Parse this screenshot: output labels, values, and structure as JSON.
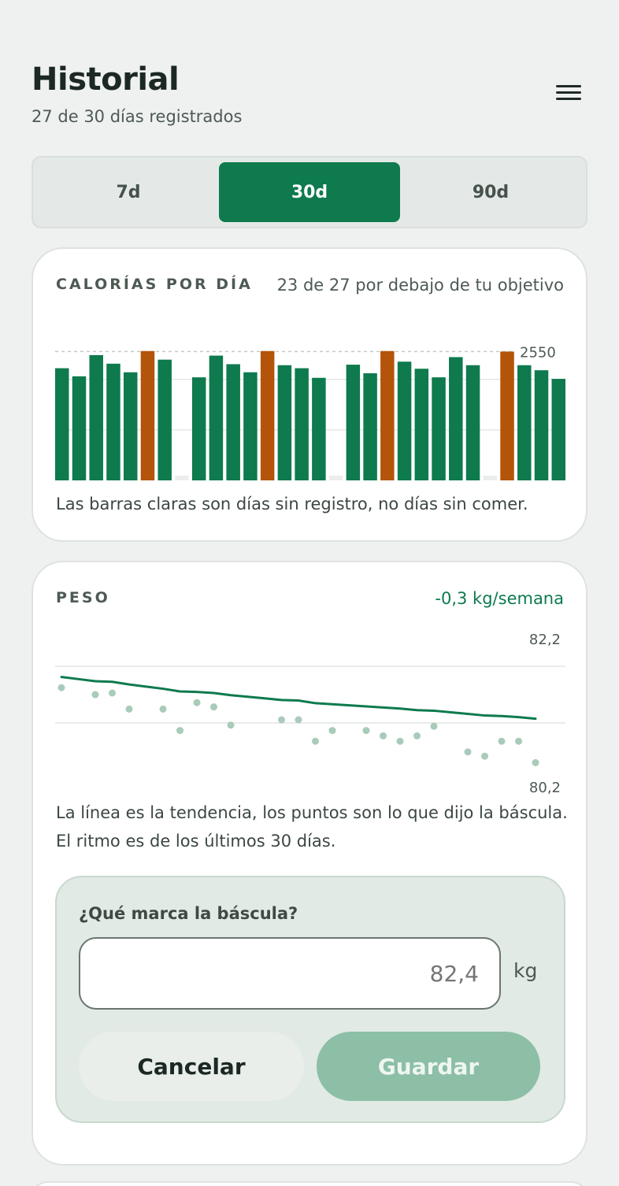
{
  "header": {
    "title": "Historial",
    "subtitle": "27 de 30 días registrados",
    "menu_icon": "hamburger-menu-icon"
  },
  "range_tabs": {
    "selected": "30d",
    "items": [
      {
        "label": "7d"
      },
      {
        "label": "30d"
      },
      {
        "label": "90d"
      }
    ]
  },
  "calories_card": {
    "label": "CALORÍAS POR DÍA",
    "summary": "23 de 27 por debajo de tu objetivo",
    "note": "Las barras claras son días sin registro, no días sin comer.",
    "colors": {
      "under": "#0e7a4e",
      "over": "#b4540a",
      "missing": "#eceeed"
    }
  },
  "weight_card": {
    "label": "PESO",
    "rate": "-0,3 kg/semana",
    "note": "La línea es la tendencia, los puntos son lo que dijo la báscula. El ritmo es de los últimos 30 días.",
    "scale_form": {
      "question": "¿Qué marca la báscula?",
      "placeholder": "82,4",
      "value": "",
      "unit": "kg",
      "cancel_label": "Cancelar",
      "save_label": "Guardar"
    }
  },
  "chart_data": [
    {
      "type": "bar",
      "title": "CALORÍAS POR DÍA",
      "x": [
        1,
        2,
        3,
        4,
        5,
        6,
        7,
        8,
        9,
        10,
        11,
        12,
        13,
        14,
        15,
        16,
        17,
        18,
        19,
        20,
        21,
        22,
        23,
        24,
        25,
        26,
        27,
        28,
        29,
        30
      ],
      "values": [
        2220,
        2060,
        2480,
        2310,
        2140,
        2560,
        2390,
        null,
        2040,
        2470,
        2300,
        2140,
        2560,
        2280,
        2220,
        2030,
        null,
        2290,
        2120,
        2560,
        2350,
        2210,
        2040,
        2440,
        2280,
        null,
        2550,
        2280,
        2180,
        2010
      ],
      "status": [
        "under",
        "under",
        "under",
        "under",
        "under",
        "over",
        "under",
        "missing",
        "under",
        "under",
        "under",
        "under",
        "over",
        "under",
        "under",
        "under",
        "missing",
        "under",
        "under",
        "over",
        "under",
        "under",
        "under",
        "under",
        "under",
        "missing",
        "over",
        "under",
        "under",
        "under"
      ],
      "reference_line": {
        "label": "2550",
        "value": 2550
      },
      "ylim": [
        0,
        2650
      ],
      "grid": true
    },
    {
      "type": "line",
      "title": "PESO",
      "x": [
        1,
        2,
        3,
        4,
        5,
        6,
        7,
        8,
        9,
        10,
        11,
        12,
        13,
        14,
        15,
        16,
        17,
        18,
        19,
        20,
        21,
        22,
        23,
        24,
        25,
        26,
        27,
        28,
        29,
        30
      ],
      "series": [
        {
          "values": [
            82.0,
            81.96,
            81.92,
            81.91,
            81.86,
            81.82,
            81.78,
            81.73,
            81.72,
            81.7,
            81.66,
            81.63,
            81.6,
            81.57,
            81.56,
            81.51,
            81.49,
            81.47,
            81.45,
            81.43,
            81.41,
            81.38,
            81.37,
            81.34,
            81.31,
            81.28,
            81.27,
            81.25,
            81.22,
            null
          ]
        },
        {
          "values": [
            81.8,
            null,
            81.67,
            81.7,
            81.4,
            null,
            81.4,
            81.0,
            81.52,
            81.44,
            81.1,
            null,
            null,
            81.2,
            81.2,
            80.8,
            81.0,
            null,
            81.0,
            80.9,
            80.8,
            80.9,
            81.08,
            null,
            80.6,
            80.52,
            80.8,
            80.8,
            80.4,
            null
          ]
        }
      ],
      "y_tick_labels": [
        "82,2",
        "80,2"
      ],
      "ylim": [
        80.2,
        82.2
      ],
      "grid": true
    }
  ]
}
